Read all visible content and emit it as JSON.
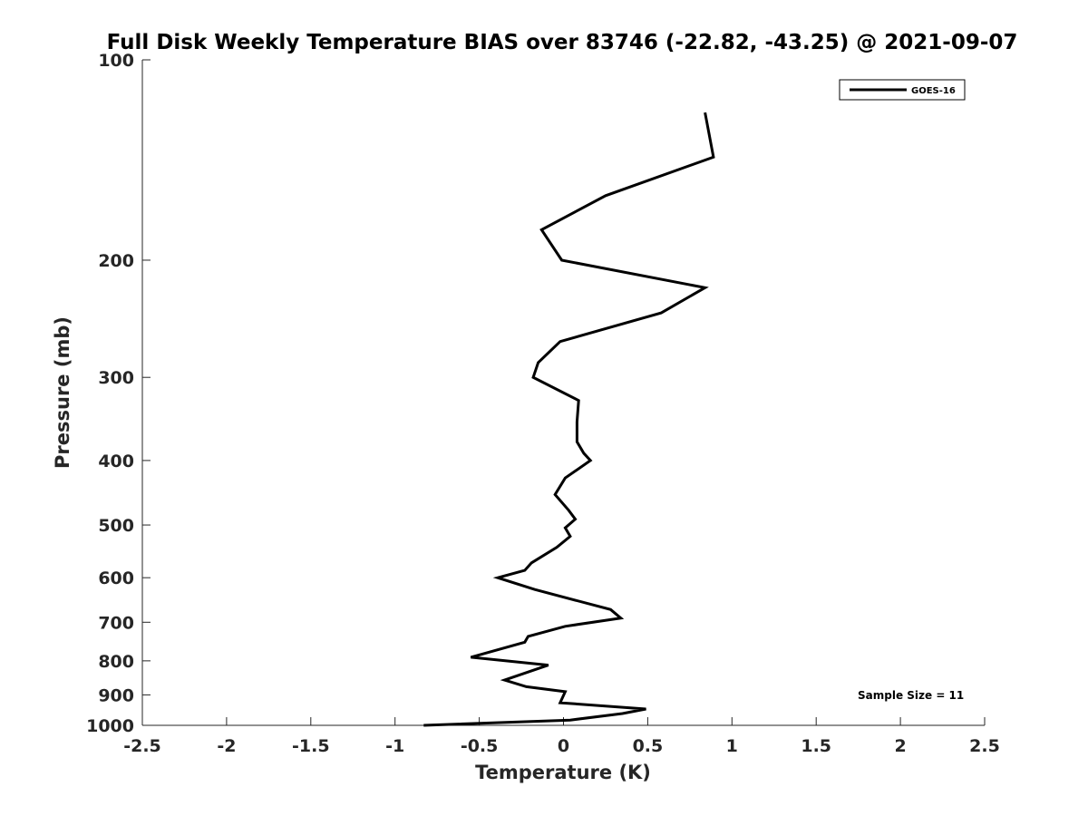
{
  "chart_data": {
    "type": "line",
    "title": "Full Disk Weekly Temperature BIAS over 83746 (-22.82, -43.25) @ 2021-09-07",
    "xlabel": "Temperature (K)",
    "ylabel": "Pressure (mb)",
    "xlim": [
      -2.5,
      2.5
    ],
    "ylim": [
      100,
      1000
    ],
    "y_scale": "log",
    "y_reversed": true,
    "grid": false,
    "legend_position": "top-right",
    "x_ticks": [
      -2.5,
      -2,
      -1.5,
      -1,
      -0.5,
      0,
      0.5,
      1,
      1.5,
      2,
      2.5
    ],
    "x_tick_labels": [
      "-2.5",
      "-2",
      "-1.5",
      "-1",
      "-0.5",
      "0",
      "0.5",
      "1",
      "1.5",
      "2",
      "2.5"
    ],
    "y_ticks": [
      100,
      200,
      300,
      400,
      500,
      600,
      700,
      800,
      900,
      1000
    ],
    "y_tick_labels": [
      "100",
      "200",
      "300",
      "400",
      "500",
      "600",
      "700",
      "800",
      "900",
      "1000"
    ],
    "series": [
      {
        "name": "GOES-16",
        "color": "#000000",
        "points": [
          [
            0.84,
            120
          ],
          [
            0.89,
            140
          ],
          [
            0.25,
            160
          ],
          [
            -0.13,
            180
          ],
          [
            -0.01,
            200
          ],
          [
            0.84,
            220
          ],
          [
            0.58,
            240
          ],
          [
            -0.02,
            265
          ],
          [
            -0.15,
            285
          ],
          [
            -0.18,
            300
          ],
          [
            0.09,
            325
          ],
          [
            0.08,
            350
          ],
          [
            0.08,
            375
          ],
          [
            0.12,
            390
          ],
          [
            0.16,
            400
          ],
          [
            0.01,
            425
          ],
          [
            -0.05,
            450
          ],
          [
            0.03,
            475
          ],
          [
            0.07,
            490
          ],
          [
            0.01,
            505
          ],
          [
            0.04,
            520
          ],
          [
            -0.04,
            540
          ],
          [
            -0.19,
            570
          ],
          [
            -0.23,
            585
          ],
          [
            -0.39,
            600
          ],
          [
            -0.17,
            625
          ],
          [
            0.28,
            670
          ],
          [
            0.34,
            690
          ],
          [
            0.01,
            710
          ],
          [
            -0.21,
            735
          ],
          [
            -0.23,
            750
          ],
          [
            -0.55,
            790
          ],
          [
            -0.09,
            812
          ],
          [
            -0.35,
            855
          ],
          [
            -0.22,
            875
          ],
          [
            0.01,
            890
          ],
          [
            -0.02,
            925
          ],
          [
            0.49,
            945
          ],
          [
            0.35,
            960
          ],
          [
            0.04,
            982
          ],
          [
            -0.83,
            1000
          ]
        ]
      }
    ],
    "annotations": [
      "Sample Size = 11"
    ]
  },
  "colors": {
    "line": "#000000",
    "axis": "#262626",
    "background": "#ffffff"
  }
}
